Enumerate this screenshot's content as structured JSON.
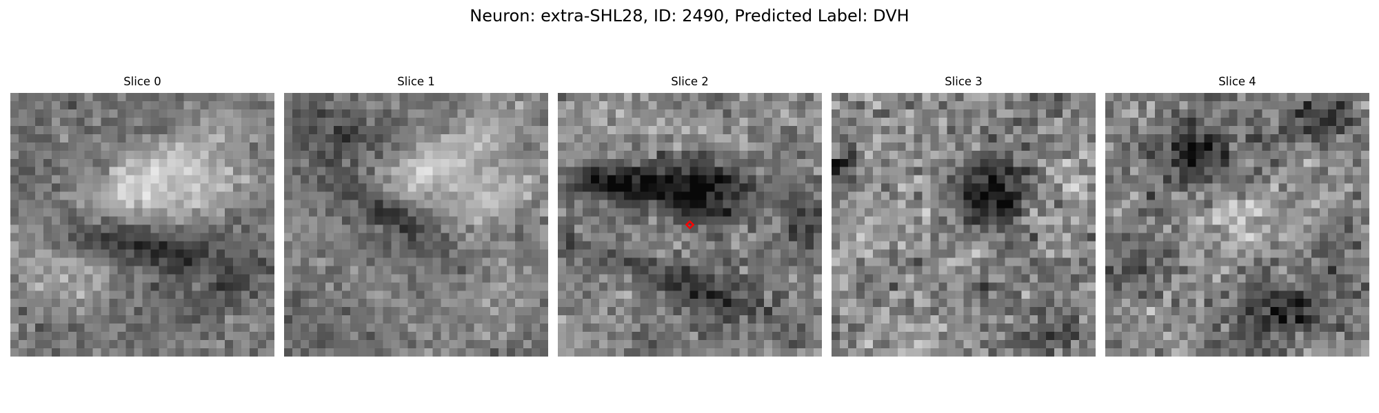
{
  "figure": {
    "title": "Neuron: extra-SHL28, ID: 2490, Predicted Label: DVH"
  },
  "grid": {
    "rows": 32,
    "cols": 32
  },
  "panels": [
    {
      "title": "Slice 0",
      "seed": 11,
      "base": 118,
      "contrast": 56,
      "noise": 22,
      "blobs": [
        {
          "cx": 16,
          "cy": 10,
          "rx": 9,
          "ry": 3.2,
          "angle": -0.42,
          "amp": 90
        },
        {
          "cx": 24,
          "cy": 12,
          "rx": 7,
          "ry": 3,
          "angle": -0.3,
          "amp": 60
        },
        {
          "cx": 16,
          "cy": 18,
          "rx": 10,
          "ry": 2.5,
          "angle": 0.25,
          "amp": -78
        },
        {
          "cx": 6,
          "cy": 22,
          "rx": 5,
          "ry": 3.5,
          "angle": 0.1,
          "amp": 45
        },
        {
          "cx": 26,
          "cy": 24,
          "rx": 5,
          "ry": 2.5,
          "angle": -0.5,
          "amp": -55
        }
      ],
      "marker": null
    },
    {
      "title": "Slice 1",
      "seed": 23,
      "base": 120,
      "contrast": 54,
      "noise": 22,
      "blobs": [
        {
          "cx": 18,
          "cy": 8,
          "rx": 10,
          "ry": 3.2,
          "angle": -0.55,
          "amp": 75
        },
        {
          "cx": 25,
          "cy": 12,
          "rx": 6,
          "ry": 3.5,
          "angle": -0.45,
          "amp": 80
        },
        {
          "cx": 12,
          "cy": 14,
          "rx": 8,
          "ry": 2.6,
          "angle": 0.55,
          "amp": -80
        },
        {
          "cx": 8,
          "cy": 5,
          "rx": 5,
          "ry": 3,
          "angle": 0,
          "amp": -50
        },
        {
          "cx": 20,
          "cy": 24,
          "rx": 8,
          "ry": 4,
          "angle": 0.2,
          "amp": 20
        }
      ],
      "marker": null
    },
    {
      "title": "Slice 2",
      "seed": 37,
      "base": 130,
      "contrast": 56,
      "noise": 28,
      "blobs": [
        {
          "cx": 17,
          "cy": 11,
          "rx": 6,
          "ry": 4,
          "angle": 0,
          "amp": -120
        },
        {
          "cx": 7,
          "cy": 10.5,
          "rx": 7,
          "ry": 2.2,
          "angle": 0.05,
          "amp": -90
        },
        {
          "cx": 15,
          "cy": 23,
          "rx": 12,
          "ry": 2.4,
          "angle": 0.35,
          "amp": -70
        },
        {
          "cx": 29,
          "cy": 16,
          "rx": 2.5,
          "ry": 5,
          "angle": 0,
          "amp": -60
        },
        {
          "cx": 12,
          "cy": 4,
          "rx": 8,
          "ry": 2.5,
          "angle": 0,
          "amp": 40
        }
      ],
      "marker": {
        "col": 16,
        "row": 16
      }
    },
    {
      "title": "Slice 3",
      "seed": 41,
      "base": 135,
      "contrast": 50,
      "noise": 34,
      "blobs": [
        {
          "cx": 19,
          "cy": 12,
          "rx": 4,
          "ry": 4.5,
          "angle": 0,
          "amp": -115
        },
        {
          "cx": 1,
          "cy": 8,
          "rx": 2,
          "ry": 3,
          "angle": 0,
          "amp": -70
        },
        {
          "cx": 26,
          "cy": 29,
          "rx": 4,
          "ry": 2,
          "angle": 0,
          "amp": -55
        },
        {
          "cx": 18,
          "cy": 24,
          "rx": 5,
          "ry": 2,
          "angle": 0.2,
          "amp": -40
        },
        {
          "cx": 8,
          "cy": 16,
          "rx": 6,
          "ry": 5,
          "angle": 0,
          "amp": 25
        }
      ],
      "marker": null
    },
    {
      "title": "Slice 4",
      "seed": 53,
      "base": 128,
      "contrast": 50,
      "noise": 32,
      "blobs": [
        {
          "cx": 10,
          "cy": 7,
          "rx": 4,
          "ry": 3.5,
          "angle": 0,
          "amp": -100
        },
        {
          "cx": 26,
          "cy": 3,
          "rx": 5,
          "ry": 2.5,
          "angle": 0,
          "amp": -75
        },
        {
          "cx": 22,
          "cy": 26,
          "rx": 6,
          "ry": 2.5,
          "angle": 0,
          "amp": -70
        },
        {
          "cx": 16,
          "cy": 14,
          "rx": 6,
          "ry": 4,
          "angle": -0.2,
          "amp": 45
        },
        {
          "cx": 3,
          "cy": 21,
          "rx": 3,
          "ry": 3,
          "angle": 0,
          "amp": -45
        }
      ],
      "marker": null
    }
  ]
}
